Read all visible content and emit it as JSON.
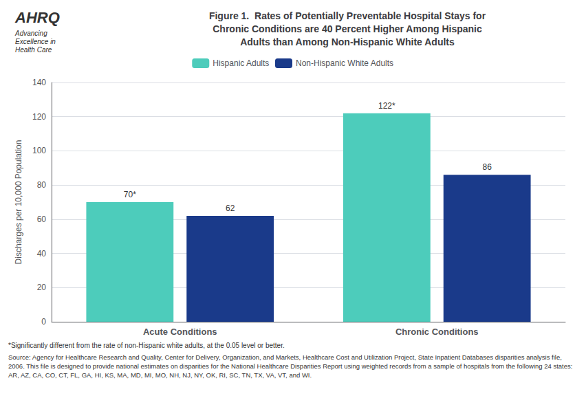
{
  "chart_data": {
    "type": "bar",
    "title": "Figure 1.  Rates of Potentially Preventable Hospital Stays for\nChronic Conditions are 40 Percent Higher Among Hispanic\nAdults than Among Non-Hispanic White Adults",
    "categories": [
      "Acute Conditions",
      "Chronic Conditions"
    ],
    "series": [
      {
        "name": "Hispanic Adults",
        "color": "#4DCCBB",
        "values": [
          70,
          122
        ],
        "value_labels": [
          "70*",
          "122*"
        ]
      },
      {
        "name": "Non-Hispanic White Adults",
        "color": "#1A3A8A",
        "values": [
          62,
          86
        ]
      }
    ],
    "ylabel": "Discharges per 10,000 Population",
    "ylim": [
      0,
      140
    ],
    "yticks": [
      0,
      20,
      40,
      60,
      80,
      100,
      120,
      140
    ],
    "grid": true,
    "legend": "top",
    "data_labels": true,
    "annotations": [
      "AHRQ",
      "Advancing\nExcellence in\nHealth Care",
      "*Significantly different from the rate of non-Hispanic white adults, at the 0.05 level or better.",
      "Source: Agency for Healthcare Research and Quality, Center for Delivery, Organization, and Markets, Healthcare Cost and Utilization Project, State Inpatient Databases disparities analysis file, 2006. This file is designed to provide national estimates on disparities for the National Healthcare Disparities Report using weighted records from a sample of hospitals from the following 24 states: AR, AZ, CA, CO, CT, FL, GA, HI, KS, MA, MD, MI, MO, NH, NJ, NY, OK, RI, SC, TN, TX, VA, VT, and WI."
    ]
  }
}
